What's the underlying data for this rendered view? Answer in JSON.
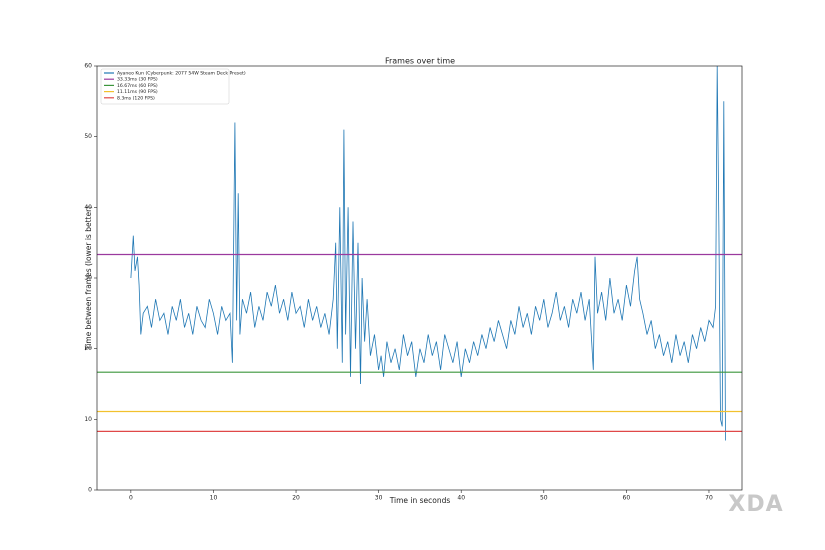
{
  "chart_data": {
    "type": "line",
    "title": "Frames over time",
    "xlabel": "Time in seconds",
    "ylabel": "Time between frames (lower is better)",
    "watermark": "XDA",
    "xlim": [
      -4.1,
      74
    ],
    "ylim": [
      0,
      60
    ],
    "xticks": [
      0,
      10,
      20,
      30,
      40,
      50,
      60,
      70
    ],
    "yticks": [
      0,
      10,
      20,
      30,
      40,
      50,
      60
    ],
    "legend": "upper left",
    "series": [
      {
        "name": "Ayaneo Kun (Cyberpunk: 2077 54W Steam Deck Preset)",
        "color": "#1f77b4",
        "x": [
          0,
          0.3,
          0.5,
          0.8,
          1.0,
          1.2,
          1.5,
          2,
          2.5,
          3,
          3.5,
          4,
          4.5,
          5,
          5.5,
          6,
          6.5,
          7,
          7.5,
          8,
          8.5,
          9,
          9.5,
          10,
          10.5,
          11,
          11.5,
          12,
          12.3,
          12.6,
          12.8,
          13,
          13.2,
          13.5,
          14,
          14.5,
          15,
          15.5,
          16,
          16.5,
          17,
          17.5,
          18,
          18.5,
          19,
          19.5,
          20,
          20.5,
          21,
          21.5,
          22,
          22.5,
          23,
          23.5,
          24,
          24.5,
          24.8,
          25,
          25.3,
          25.6,
          25.8,
          26,
          26.3,
          26.6,
          26.9,
          27.2,
          27.5,
          27.8,
          28,
          28.3,
          28.6,
          29,
          29.5,
          30,
          30.3,
          30.6,
          31,
          31.5,
          32,
          32.5,
          33,
          33.5,
          34,
          34.5,
          35,
          35.5,
          36,
          36.5,
          37,
          37.5,
          38,
          38.5,
          39,
          39.5,
          40,
          40.5,
          41,
          41.5,
          42,
          42.5,
          43,
          43.5,
          44,
          44.5,
          45,
          45.5,
          46,
          46.5,
          47,
          47.5,
          48,
          48.5,
          49,
          49.5,
          50,
          50.5,
          51,
          51.5,
          52,
          52.5,
          53,
          53.5,
          54,
          54.5,
          55,
          55.5,
          56,
          56.2,
          56.5,
          57,
          57.5,
          58,
          58.5,
          59,
          59.5,
          60,
          60.5,
          61,
          61.3,
          61.6,
          62,
          62.5,
          63,
          63.5,
          64,
          64.5,
          65,
          65.5,
          66,
          66.5,
          67,
          67.5,
          68,
          68.5,
          69,
          69.5,
          70,
          70.5,
          70.8,
          71,
          71.2,
          71.4,
          71.6,
          71.8,
          72
        ],
        "values": [
          30,
          36,
          31,
          33,
          29,
          22,
          25,
          26,
          23,
          27,
          24,
          25,
          22,
          26,
          24,
          27,
          23,
          25,
          22,
          26,
          24,
          23,
          27,
          25,
          22,
          26,
          24,
          25,
          18,
          52,
          24,
          42,
          22,
          27,
          25,
          28,
          23,
          26,
          24,
          28,
          26,
          29,
          25,
          27,
          24,
          28,
          25,
          26,
          23,
          27,
          24,
          26,
          23,
          25,
          22,
          27,
          35,
          20,
          40,
          18,
          51,
          22,
          40,
          16,
          38,
          20,
          35,
          15,
          30,
          21,
          27,
          19,
          22,
          17,
          19,
          16,
          21,
          18,
          20,
          17,
          22,
          19,
          21,
          16,
          20,
          18,
          22,
          19,
          21,
          17,
          22,
          20,
          18,
          21,
          16,
          20,
          18,
          21,
          19,
          22,
          20,
          23,
          21,
          24,
          22,
          20,
          24,
          22,
          26,
          23,
          25,
          22,
          26,
          24,
          27,
          23,
          25,
          28,
          24,
          26,
          23,
          27,
          25,
          28,
          24,
          27,
          17,
          33,
          25,
          28,
          24,
          30,
          25,
          27,
          24,
          29,
          26,
          31,
          33,
          27,
          25,
          22,
          24,
          20,
          22,
          19,
          21,
          18,
          22,
          19,
          21,
          18,
          22,
          20,
          23,
          21,
          24,
          23,
          26,
          60,
          37,
          10,
          9,
          55,
          7
        ]
      }
    ],
    "hlines": [
      {
        "name": "33.33ms (30 FPS)",
        "color": "#9b3a9e",
        "value": 33.33
      },
      {
        "name": "16.67ms (60 FPS)",
        "color": "#3c963c",
        "value": 16.67
      },
      {
        "name": "11.11ms (90 FPS)",
        "color": "#f2c12e",
        "value": 11.11
      },
      {
        "name": "8.3ms (120 FPS)",
        "color": "#e04848",
        "value": 8.3
      }
    ]
  }
}
